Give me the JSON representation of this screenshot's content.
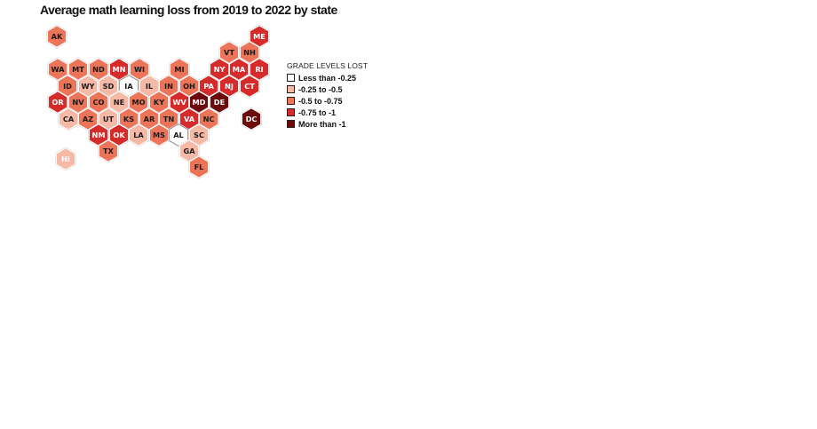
{
  "title": "Average math learning loss from 2019 to 2022 by state",
  "legend": {
    "title": "GRADE LEVELS LOST",
    "items": [
      {
        "label": "Less than -0.25",
        "color": "#ffffff"
      },
      {
        "label": "-0.25 to -0.5",
        "color": "#f6b9a6"
      },
      {
        "label": "-0.5 to -0.75",
        "color": "#ec7459"
      },
      {
        "label": "-0.75 to -1",
        "color": "#d52b2b"
      },
      {
        "label": "More than -1",
        "color": "#6b0b0b"
      }
    ]
  },
  "chart_data": {
    "type": "hex-tile-map",
    "categories": [
      "Less than -0.25",
      "-0.25 to -0.5",
      "-0.5 to -0.75",
      "-0.75 to -1",
      "More than -1"
    ],
    "states": [
      {
        "abbr": "AK",
        "bin": 2
      },
      {
        "abbr": "ME",
        "bin": 3
      },
      {
        "abbr": "VT",
        "bin": 2
      },
      {
        "abbr": "NH",
        "bin": 2
      },
      {
        "abbr": "WA",
        "bin": 2
      },
      {
        "abbr": "MT",
        "bin": 2
      },
      {
        "abbr": "ND",
        "bin": 2
      },
      {
        "abbr": "MN",
        "bin": 3
      },
      {
        "abbr": "WI",
        "bin": 2
      },
      {
        "abbr": "MI",
        "bin": 2
      },
      {
        "abbr": "NY",
        "bin": 3
      },
      {
        "abbr": "MA",
        "bin": 3
      },
      {
        "abbr": "RI",
        "bin": 3
      },
      {
        "abbr": "ID",
        "bin": 2
      },
      {
        "abbr": "WY",
        "bin": 1
      },
      {
        "abbr": "SD",
        "bin": 1
      },
      {
        "abbr": "IA",
        "bin": 0
      },
      {
        "abbr": "IL",
        "bin": 1
      },
      {
        "abbr": "IN",
        "bin": 2
      },
      {
        "abbr": "OH",
        "bin": 2
      },
      {
        "abbr": "PA",
        "bin": 3
      },
      {
        "abbr": "NJ",
        "bin": 3
      },
      {
        "abbr": "CT",
        "bin": 3
      },
      {
        "abbr": "OR",
        "bin": 3
      },
      {
        "abbr": "NV",
        "bin": 2
      },
      {
        "abbr": "CO",
        "bin": 2
      },
      {
        "abbr": "NE",
        "bin": 1
      },
      {
        "abbr": "MO",
        "bin": 2
      },
      {
        "abbr": "KY",
        "bin": 2
      },
      {
        "abbr": "WV",
        "bin": 3
      },
      {
        "abbr": "MD",
        "bin": 4
      },
      {
        "abbr": "DE",
        "bin": 4
      },
      {
        "abbr": "CA",
        "bin": 1
      },
      {
        "abbr": "AZ",
        "bin": 2
      },
      {
        "abbr": "UT",
        "bin": 1
      },
      {
        "abbr": "KS",
        "bin": 2
      },
      {
        "abbr": "AR",
        "bin": 2
      },
      {
        "abbr": "TN",
        "bin": 2
      },
      {
        "abbr": "VA",
        "bin": 3
      },
      {
        "abbr": "NC",
        "bin": 2
      },
      {
        "abbr": "DC",
        "bin": 4
      },
      {
        "abbr": "NM",
        "bin": 3
      },
      {
        "abbr": "OK",
        "bin": 3
      },
      {
        "abbr": "LA",
        "bin": 1
      },
      {
        "abbr": "MS",
        "bin": 2
      },
      {
        "abbr": "AL",
        "bin": 0
      },
      {
        "abbr": "SC",
        "bin": 1
      },
      {
        "abbr": "TX",
        "bin": 2
      },
      {
        "abbr": "GA",
        "bin": 1
      },
      {
        "abbr": "HI",
        "bin": 1
      },
      {
        "abbr": "FL",
        "bin": 2
      }
    ]
  }
}
